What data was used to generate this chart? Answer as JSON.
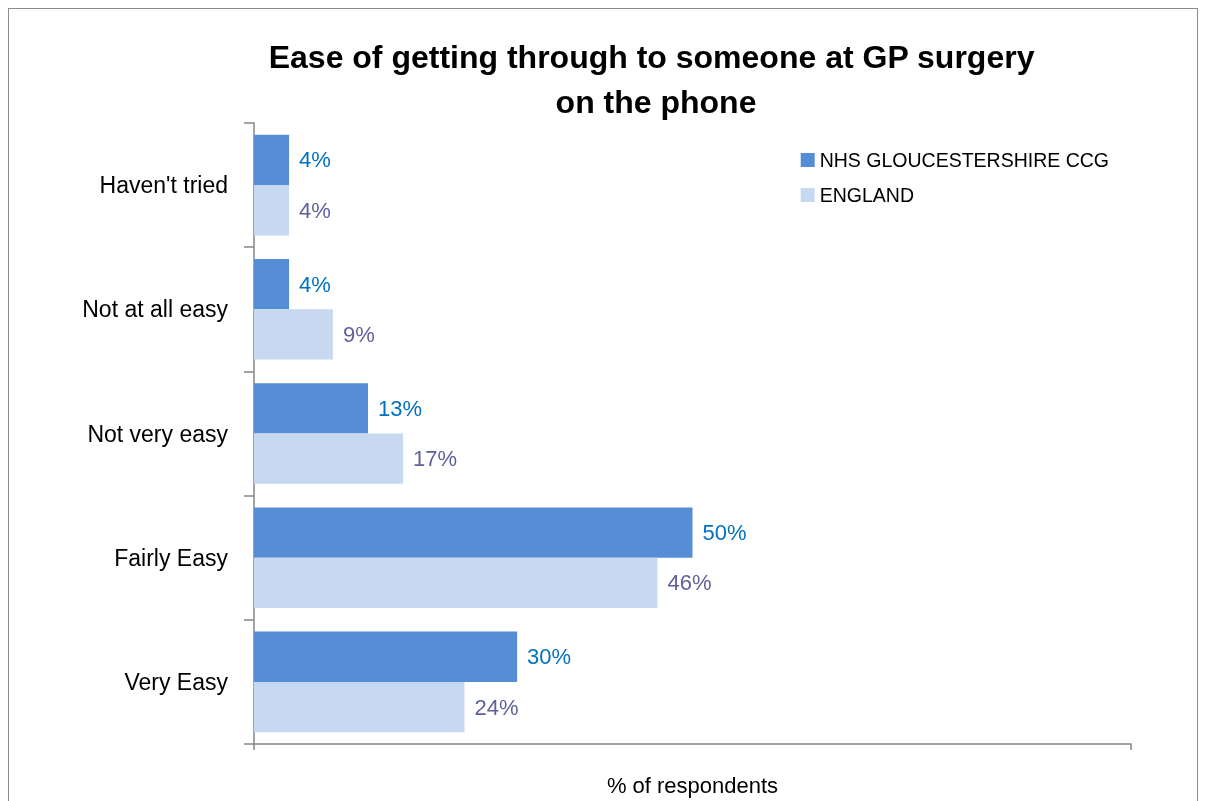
{
  "chart_data": {
    "type": "bar",
    "orientation": "horizontal",
    "title": "Ease of getting through to someone at GP surgery on the phone",
    "xlabel": "% of respondents",
    "categories": [
      "Haven't tried",
      "Not at all easy",
      "Not very easy",
      "Fairly Easy",
      "Very Easy"
    ],
    "series": [
      {
        "name": "NHS GLOUCESTERSHIRE CCG",
        "color": "#558ed5",
        "values": [
          4,
          4,
          13,
          50,
          30
        ],
        "value_labels": [
          "4%",
          "4%",
          "13%",
          "50%",
          "30%"
        ]
      },
      {
        "name": "ENGLAND",
        "color": "#c6d9f1",
        "values": [
          4,
          9,
          17,
          46,
          24
        ],
        "value_labels": [
          "4%",
          "9%",
          "17%",
          "46%",
          "24%"
        ]
      }
    ],
    "xlim": [
      0,
      100
    ],
    "xticks": [
      {
        "value": 0,
        "label": null
      },
      {
        "value": 100,
        "label": null
      }
    ],
    "tick_labels": "y",
    "grid": false,
    "legend": "top right"
  }
}
